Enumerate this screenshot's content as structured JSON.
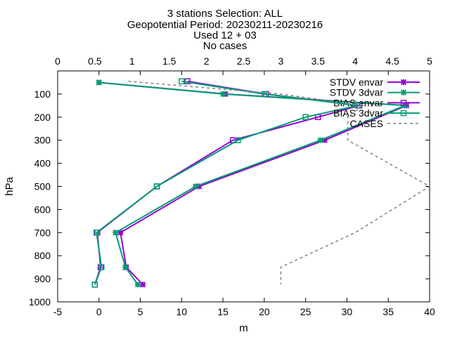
{
  "title_lines": [
    "3 stations Selection: ALL",
    "Geopotential  Period: 20230211-20230216",
    "Used 12 + 03",
    "No cases"
  ],
  "chart_data": {
    "type": "line",
    "xlabel": "m",
    "ylabel": "hPa",
    "xlim": [
      -5,
      40
    ],
    "x_ticks": [
      -5,
      0,
      5,
      10,
      15,
      20,
      25,
      30,
      35,
      40
    ],
    "x2lim": [
      0,
      5
    ],
    "x2_ticks": [
      0,
      0.5,
      1,
      1.5,
      2,
      2.5,
      3,
      3.5,
      4,
      4.5,
      5
    ],
    "ylim": [
      1000,
      0
    ],
    "y_ticks": [
      100,
      200,
      300,
      400,
      500,
      600,
      700,
      800,
      900,
      1000
    ],
    "grid": false,
    "legend_position": "top-right",
    "series": [
      {
        "name": "STDV envar",
        "color": "#9400d3",
        "marker": "star",
        "dash": "solid",
        "points": [
          [
            0,
            50
          ],
          [
            15.3,
            100
          ],
          [
            37.2,
            150
          ],
          [
            27.3,
            300
          ],
          [
            12.1,
            500
          ],
          [
            2.6,
            700
          ],
          [
            3.3,
            850
          ],
          [
            5.3,
            925
          ]
        ]
      },
      {
        "name": "STDV 3dvar",
        "color": "#009e73",
        "marker": "star",
        "dash": "solid",
        "points": [
          [
            0,
            50
          ],
          [
            15.0,
            100
          ],
          [
            37.0,
            150
          ],
          [
            26.8,
            300
          ],
          [
            11.7,
            500
          ],
          [
            2.0,
            700
          ],
          [
            3.2,
            850
          ],
          [
            4.7,
            925
          ]
        ]
      },
      {
        "name": "BIAS envar",
        "color": "#9400d3",
        "marker": "square",
        "dash": "solid",
        "points": [
          [
            10.7,
            45
          ],
          [
            20.2,
            100
          ],
          [
            31.5,
            150
          ],
          [
            26.5,
            200
          ],
          [
            16.2,
            300
          ],
          [
            7.0,
            500
          ],
          [
            -0.2,
            700
          ],
          [
            0.2,
            850
          ],
          [
            -0.5,
            925
          ]
        ]
      },
      {
        "name": "BIAS 3dvar",
        "color": "#009e73",
        "marker": "square",
        "dash": "solid",
        "points": [
          [
            10.0,
            45
          ],
          [
            20.0,
            100
          ],
          [
            31.3,
            150
          ],
          [
            25.0,
            200
          ],
          [
            16.8,
            300
          ],
          [
            7.0,
            500
          ],
          [
            -0.3,
            700
          ],
          [
            0.3,
            850
          ],
          [
            -0.5,
            925
          ]
        ]
      },
      {
        "name": "CASES",
        "color": "#808080",
        "marker": "none",
        "dash": "dashed",
        "axis": "x2",
        "points": [
          [
            0.95,
            45
          ],
          [
            3.0,
            100
          ],
          [
            4.1,
            150
          ],
          [
            3.9,
            200
          ],
          [
            3.9,
            300
          ],
          [
            5.0,
            500
          ],
          [
            4.0,
            700
          ],
          [
            3.0,
            850
          ],
          [
            3.0,
            925
          ]
        ]
      }
    ]
  }
}
